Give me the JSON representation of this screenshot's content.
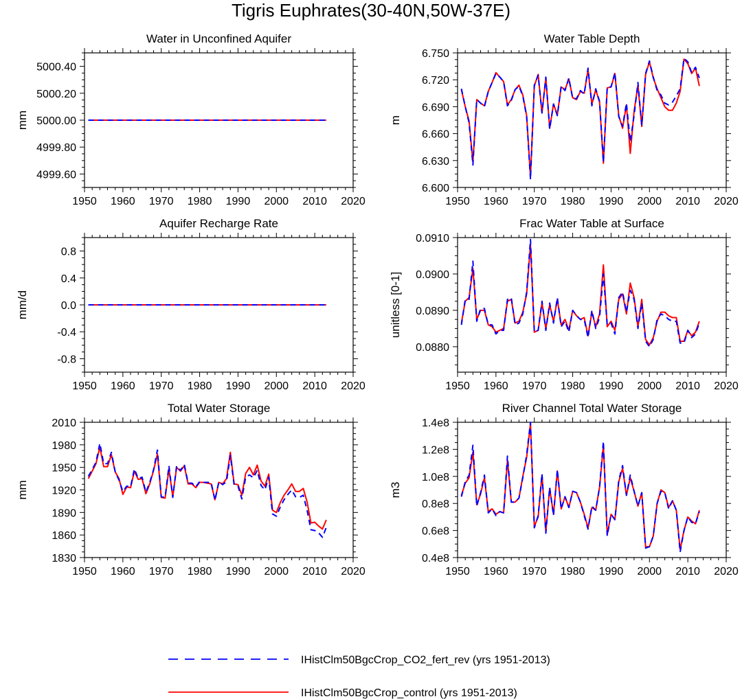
{
  "figure": {
    "title": "Tigris Euphrates(30-40N,50W-37E)",
    "legend": [
      {
        "label": "IHistClm50BgcCrop_CO2_fert_rev (yrs 1951-2013)",
        "color": "#0000ff",
        "style": "dashed"
      },
      {
        "label": "IHistClm50BgcCrop_control (yrs 1951-2013)",
        "color": "#ff0000",
        "style": "solid"
      }
    ],
    "legend_placement": "bottom-center"
  },
  "chart_data": [
    {
      "type": "line",
      "title": "Water in Unconfined Aquifer",
      "ylabel": "mm",
      "xlim": [
        1950,
        2020
      ],
      "ylim": [
        4999.5,
        5000.5
      ],
      "xticks": [
        1950,
        1960,
        1970,
        1980,
        1990,
        2000,
        2010,
        2020
      ],
      "yticks": [
        4999.6,
        4999.8,
        5000.0,
        5000.2,
        5000.4
      ],
      "ytick_labels": [
        "4999.60",
        "4999.80",
        "5000.00",
        "5000.20",
        "5000.40"
      ],
      "x_start": 1951,
      "series": [
        {
          "name": "IHistClm50BgcCrop_control (yrs 1951-2013)",
          "color": "#ff0000",
          "dash": "solid",
          "values": [
            5000,
            5000,
            5000,
            5000,
            5000,
            5000,
            5000,
            5000,
            5000,
            5000,
            5000,
            5000,
            5000,
            5000,
            5000,
            5000,
            5000,
            5000,
            5000,
            5000,
            5000,
            5000,
            5000,
            5000,
            5000,
            5000,
            5000,
            5000,
            5000,
            5000,
            5000,
            5000,
            5000,
            5000,
            5000,
            5000,
            5000,
            5000,
            5000,
            5000,
            5000,
            5000,
            5000,
            5000,
            5000,
            5000,
            5000,
            5000,
            5000,
            5000,
            5000,
            5000,
            5000,
            5000,
            5000,
            5000,
            5000,
            5000,
            5000,
            5000,
            5000,
            5000,
            5000
          ]
        },
        {
          "name": "IHistClm50BgcCrop_CO2_fert_rev (yrs 1951-2013)",
          "color": "#0000ff",
          "dash": "dashed",
          "values": [
            5000,
            5000,
            5000,
            5000,
            5000,
            5000,
            5000,
            5000,
            5000,
            5000,
            5000,
            5000,
            5000,
            5000,
            5000,
            5000,
            5000,
            5000,
            5000,
            5000,
            5000,
            5000,
            5000,
            5000,
            5000,
            5000,
            5000,
            5000,
            5000,
            5000,
            5000,
            5000,
            5000,
            5000,
            5000,
            5000,
            5000,
            5000,
            5000,
            5000,
            5000,
            5000,
            5000,
            5000,
            5000,
            5000,
            5000,
            5000,
            5000,
            5000,
            5000,
            5000,
            5000,
            5000,
            5000,
            5000,
            5000,
            5000,
            5000,
            5000,
            5000,
            5000,
            5000
          ]
        }
      ]
    },
    {
      "type": "line",
      "title": "Water Table Depth",
      "ylabel": "m",
      "xlim": [
        1950,
        2020
      ],
      "ylim": [
        6.6,
        6.75
      ],
      "xticks": [
        1950,
        1960,
        1970,
        1980,
        1990,
        2000,
        2010,
        2020
      ],
      "yticks": [
        6.6,
        6.63,
        6.66,
        6.69,
        6.72,
        6.75
      ],
      "ytick_labels": [
        "6.600",
        "6.630",
        "6.660",
        "6.690",
        "6.720",
        "6.750"
      ],
      "x_start": 1951,
      "series": [
        {
          "name": "IHistClm50BgcCrop_control (yrs 1951-2013)",
          "color": "#ff0000",
          "dash": "solid",
          "values": [
            6.709,
            6.69,
            6.674,
            6.628,
            6.698,
            6.694,
            6.691,
            6.707,
            6.717,
            6.728,
            6.723,
            6.718,
            6.692,
            6.698,
            6.709,
            6.714,
            6.703,
            6.68,
            6.612,
            6.713,
            6.726,
            6.683,
            6.722,
            6.666,
            6.693,
            6.681,
            6.712,
            6.709,
            6.721,
            6.7,
            6.698,
            6.707,
            6.705,
            6.731,
            6.693,
            6.709,
            6.695,
            6.627,
            6.711,
            6.712,
            6.727,
            6.68,
            6.666,
            6.692,
            6.638,
            6.685,
            6.714,
            6.668,
            6.726,
            6.74,
            6.722,
            6.71,
            6.7,
            6.69,
            6.686,
            6.686,
            6.694,
            6.707,
            6.743,
            6.738,
            6.727,
            6.733,
            6.713
          ]
        },
        {
          "name": "IHistClm50BgcCrop_CO2_fert_rev (yrs 1951-2013)",
          "color": "#0000ff",
          "dash": "dashed",
          "values": [
            6.71,
            6.69,
            6.672,
            6.625,
            6.698,
            6.694,
            6.69,
            6.707,
            6.717,
            6.727,
            6.723,
            6.718,
            6.691,
            6.697,
            6.709,
            6.713,
            6.702,
            6.679,
            6.609,
            6.714,
            6.725,
            6.683,
            6.723,
            6.665,
            6.693,
            6.68,
            6.713,
            6.708,
            6.722,
            6.699,
            6.699,
            6.708,
            6.704,
            6.733,
            6.691,
            6.71,
            6.696,
            6.628,
            6.712,
            6.712,
            6.728,
            6.679,
            6.668,
            6.694,
            6.651,
            6.68,
            6.717,
            6.669,
            6.727,
            6.741,
            6.723,
            6.708,
            6.703,
            6.694,
            6.692,
            6.695,
            6.702,
            6.71,
            6.744,
            6.74,
            6.728,
            6.734,
            6.722
          ]
        }
      ]
    },
    {
      "type": "line",
      "title": "Aquifer Recharge Rate",
      "ylabel": "mm/d",
      "xlim": [
        1950,
        2020
      ],
      "ylim": [
        -1,
        1
      ],
      "xticks": [
        1950,
        1960,
        1970,
        1980,
        1990,
        2000,
        2010,
        2020
      ],
      "yticks": [
        -0.8,
        -0.4,
        0.0,
        0.4,
        0.8
      ],
      "ytick_labels": [
        "-0.8",
        "-0.4",
        "0.0",
        "0.4",
        "0.8"
      ],
      "x_start": 1951,
      "series": [
        {
          "name": "IHistClm50BgcCrop_control (yrs 1951-2013)",
          "color": "#ff0000",
          "dash": "solid",
          "values": [
            0,
            0,
            0,
            0,
            0,
            0,
            0,
            0,
            0,
            0,
            0,
            0,
            0,
            0,
            0,
            0,
            0,
            0,
            0,
            0,
            0,
            0,
            0,
            0,
            0,
            0,
            0,
            0,
            0,
            0,
            0,
            0,
            0,
            0,
            0,
            0,
            0,
            0,
            0,
            0,
            0,
            0,
            0,
            0,
            0,
            0,
            0,
            0,
            0,
            0,
            0,
            0,
            0,
            0,
            0,
            0,
            0,
            0,
            0,
            0,
            0,
            0,
            0
          ]
        },
        {
          "name": "IHistClm50BgcCrop_CO2_fert_rev (yrs 1951-2013)",
          "color": "#0000ff",
          "dash": "dashed",
          "values": [
            0,
            0,
            0,
            0,
            0,
            0,
            0,
            0,
            0,
            0,
            0,
            0,
            0,
            0,
            0,
            0,
            0,
            0,
            0,
            0,
            0,
            0,
            0,
            0,
            0,
            0,
            0,
            0,
            0,
            0,
            0,
            0,
            0,
            0,
            0,
            0,
            0,
            0,
            0,
            0,
            0,
            0,
            0,
            0,
            0,
            0,
            0,
            0,
            0,
            0,
            0,
            0,
            0,
            0,
            0,
            0,
            0,
            0,
            0,
            0,
            0,
            0,
            0
          ]
        }
      ]
    },
    {
      "type": "line",
      "title": "Frac Water Table at Surface",
      "ylabel": "unitless [0-1]",
      "xlim": [
        1950,
        2020
      ],
      "ylim": [
        0.0873,
        0.091
      ],
      "xticks": [
        1950,
        1960,
        1970,
        1980,
        1990,
        2000,
        2010,
        2020
      ],
      "yticks": [
        0.088,
        0.089,
        0.09,
        0.091
      ],
      "ytick_labels": [
        "0.0880",
        "0.0890",
        "0.0900",
        "0.0910"
      ],
      "x_start": 1951,
      "series": [
        {
          "name": "IHistClm50BgcCrop_control (yrs 1951-2013)",
          "color": "#ff0000",
          "dash": "solid",
          "values": [
            0.08865,
            0.08925,
            0.08935,
            0.09015,
            0.08875,
            0.089,
            0.089,
            0.0886,
            0.08855,
            0.0884,
            0.08845,
            0.0885,
            0.08925,
            0.0893,
            0.08865,
            0.0887,
            0.08895,
            0.08945,
            0.0908,
            0.0884,
            0.08845,
            0.0892,
            0.0885,
            0.08915,
            0.0887,
            0.0893,
            0.0886,
            0.08875,
            0.08845,
            0.089,
            0.08885,
            0.08875,
            0.0888,
            0.0883,
            0.08895,
            0.08855,
            0.0889,
            0.09025,
            0.08855,
            0.0887,
            0.08845,
            0.0893,
            0.08945,
            0.0889,
            0.08975,
            0.08935,
            0.08855,
            0.0893,
            0.0882,
            0.08805,
            0.08825,
            0.0887,
            0.08895,
            0.08895,
            0.08885,
            0.0888,
            0.0888,
            0.08815,
            0.08815,
            0.08845,
            0.0883,
            0.0884,
            0.0887
          ]
        },
        {
          "name": "IHistClm50BgcCrop_CO2_fert_rev (yrs 1951-2013)",
          "color": "#0000ff",
          "dash": "dashed",
          "values": [
            0.0886,
            0.0893,
            0.0893,
            0.09035,
            0.0887,
            0.08905,
            0.08905,
            0.0886,
            0.0886,
            0.08835,
            0.08845,
            0.08845,
            0.0893,
            0.08935,
            0.0886,
            0.08865,
            0.0889,
            0.0895,
            0.09095,
            0.0884,
            0.08845,
            0.08925,
            0.08845,
            0.0892,
            0.08865,
            0.08935,
            0.08855,
            0.0887,
            0.0884,
            0.089,
            0.08885,
            0.08875,
            0.08875,
            0.08825,
            0.089,
            0.0885,
            0.0888,
            0.09,
            0.0886,
            0.08865,
            0.08835,
            0.08935,
            0.0895,
            0.08895,
            0.08955,
            0.0893,
            0.0885,
            0.0892,
            0.08815,
            0.088,
            0.0882,
            0.08875,
            0.0889,
            0.08885,
            0.08875,
            0.0887,
            0.0887,
            0.0881,
            0.0881,
            0.08845,
            0.08825,
            0.08835,
            0.08865
          ]
        }
      ]
    },
    {
      "type": "line",
      "title": "Total Water Storage",
      "ylabel": "mm",
      "xlim": [
        1950,
        2020
      ],
      "ylim": [
        1830,
        2010
      ],
      "xticks": [
        1950,
        1960,
        1970,
        1980,
        1990,
        2000,
        2010,
        2020
      ],
      "yticks": [
        1830,
        1860,
        1890,
        1920,
        1950,
        1980,
        2010
      ],
      "ytick_labels": [
        "1830",
        "1860",
        "1890",
        "1920",
        "1950",
        "1980",
        "2010"
      ],
      "x_start": 1951,
      "series": [
        {
          "name": "IHistClm50BgcCrop_control (yrs 1951-2013)",
          "color": "#ff0000",
          "dash": "solid",
          "values": [
            1935,
            1945,
            1955,
            1977,
            1951,
            1951,
            1967,
            1944,
            1935,
            1914,
            1924,
            1923,
            1945,
            1934,
            1935,
            1915,
            1928,
            1946,
            1968,
            1910,
            1909,
            1948,
            1911,
            1950,
            1945,
            1952,
            1928,
            1928,
            1923,
            1930,
            1930,
            1929,
            1928,
            1907,
            1930,
            1928,
            1935,
            1970,
            1928,
            1927,
            1913,
            1942,
            1950,
            1940,
            1953,
            1932,
            1925,
            1941,
            1893,
            1890,
            1903,
            1913,
            1920,
            1928,
            1918,
            1918,
            1922,
            1904,
            1876,
            1877,
            1872,
            1868,
            1880
          ]
        },
        {
          "name": "IHistClm50BgcCrop_CO2_fert_rev (yrs 1951-2013)",
          "color": "#0000ff",
          "dash": "dashed",
          "values": [
            1938,
            1947,
            1957,
            1982,
            1955,
            1955,
            1970,
            1944,
            1933,
            1918,
            1925,
            1924,
            1948,
            1935,
            1937,
            1917,
            1930,
            1947,
            1973,
            1911,
            1910,
            1952,
            1910,
            1952,
            1946,
            1954,
            1929,
            1929,
            1924,
            1931,
            1930,
            1930,
            1930,
            1906,
            1931,
            1927,
            1931,
            1966,
            1926,
            1925,
            1908,
            1937,
            1940,
            1936,
            1946,
            1926,
            1920,
            1937,
            1888,
            1885,
            1897,
            1907,
            1914,
            1920,
            1911,
            1910,
            1913,
            1893,
            1867,
            1866,
            1863,
            1857,
            1870
          ]
        }
      ]
    },
    {
      "type": "line",
      "title": "River Channel Total Water Storage",
      "ylabel": "m3",
      "xlim": [
        1950,
        2020
      ],
      "ylim": [
        0.4,
        1.4
      ],
      "xticks": [
        1950,
        1960,
        1970,
        1980,
        1990,
        2000,
        2010,
        2020
      ],
      "yticks": [
        0.4,
        0.6,
        0.8,
        1.0,
        1.2,
        1.4
      ],
      "ytick_labels": [
        "0.4e8",
        "0.6e8",
        "0.8e8",
        "1.0e8",
        "1.2e8",
        "1.4e8"
      ],
      "value_unit": "e8 m3",
      "x_start": 1951,
      "series": [
        {
          "name": "IHistClm50BgcCrop_control (yrs 1951-2013)",
          "color": "#ff0000",
          "dash": "solid",
          "values": [
            0.86,
            0.95,
            0.99,
            1.18,
            0.79,
            0.87,
            0.99,
            0.74,
            0.76,
            0.72,
            0.74,
            0.73,
            1.12,
            0.81,
            0.81,
            0.84,
            1.0,
            1.14,
            1.39,
            0.63,
            0.7,
            1.01,
            0.59,
            0.91,
            0.72,
            1.04,
            0.76,
            0.85,
            0.77,
            0.89,
            0.88,
            0.81,
            0.72,
            0.62,
            0.77,
            0.75,
            0.92,
            1.23,
            0.57,
            0.72,
            0.68,
            0.96,
            1.06,
            0.86,
            0.99,
            0.89,
            0.78,
            0.88,
            0.48,
            0.48,
            0.56,
            0.8,
            0.9,
            0.88,
            0.77,
            0.82,
            0.75,
            0.46,
            0.6,
            0.7,
            0.67,
            0.65,
            0.75
          ]
        },
        {
          "name": "IHistClm50BgcCrop_CO2_fert_rev (yrs 1951-2013)",
          "color": "#0000ff",
          "dash": "dashed",
          "values": [
            0.85,
            0.96,
            1.01,
            1.23,
            0.78,
            0.88,
            1.01,
            0.73,
            0.76,
            0.71,
            0.74,
            0.73,
            1.15,
            0.81,
            0.81,
            0.84,
            0.99,
            1.16,
            1.4,
            0.62,
            0.71,
            1.02,
            0.58,
            0.92,
            0.71,
            1.05,
            0.76,
            0.85,
            0.77,
            0.89,
            0.88,
            0.81,
            0.71,
            0.61,
            0.78,
            0.75,
            0.92,
            1.26,
            0.56,
            0.72,
            0.68,
            0.97,
            1.08,
            0.86,
            1.01,
            0.89,
            0.78,
            0.88,
            0.47,
            0.48,
            0.56,
            0.8,
            0.89,
            0.88,
            0.76,
            0.82,
            0.75,
            0.44,
            0.6,
            0.7,
            0.66,
            0.65,
            0.74
          ]
        }
      ]
    }
  ]
}
